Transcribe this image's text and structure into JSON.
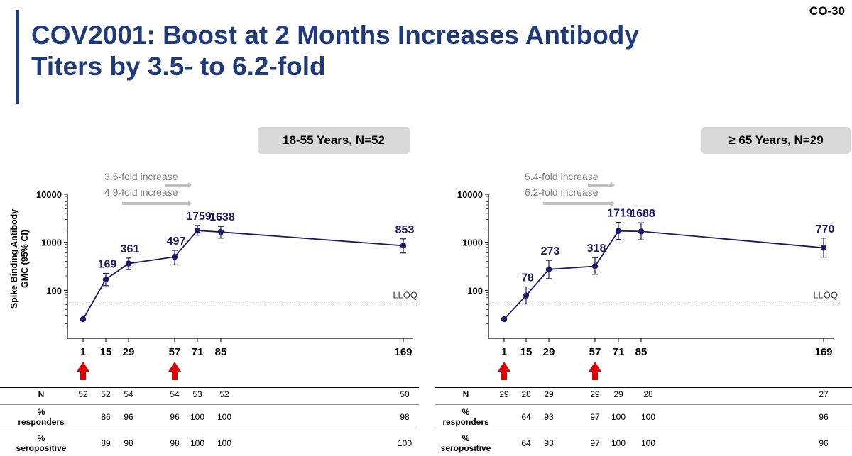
{
  "slide_id": "CO-30",
  "title_line1": "COV2001: Boost at 2 Months Increases Antibody",
  "title_line2": "Titers by 3.5- to 6.2-fold",
  "colors": {
    "title": "#1f3a7a",
    "series": "#1a1a66",
    "arrow": "#e00000",
    "fold_arrow": "#bfbfbf"
  },
  "chart_data": [
    {
      "type": "line",
      "panel_label": "18-55 Years, N=52",
      "ylabel": "Spike Binding Antibody GMC (95% CI)",
      "yscale": "log",
      "ylim": [
        10,
        10000
      ],
      "yticks": [
        "100",
        "1000",
        "10000"
      ],
      "xticks": [
        "1",
        "15",
        "29",
        "57",
        "71",
        "85",
        "169"
      ],
      "x": [
        1,
        15,
        29,
        57,
        71,
        85,
        169
      ],
      "y": [
        25,
        169,
        361,
        497,
        1759,
        1638,
        853
      ],
      "ci_low": [
        null,
        125,
        270,
        340,
        1400,
        1220,
        600
      ],
      "ci_high": [
        null,
        225,
        470,
        680,
        2250,
        2150,
        1180
      ],
      "data_labels": [
        "",
        "169",
        "361",
        "497",
        "1759",
        "1638",
        "853"
      ],
      "lloq": 52,
      "lloq_label": "LLOQ",
      "fold_annotations": [
        "3.5-fold increase",
        "4.9-fold increase"
      ],
      "dose_days": [
        1,
        57
      ]
    },
    {
      "type": "line",
      "panel_label": "≥ 65 Years, N=29",
      "ylabel": "",
      "yscale": "log",
      "ylim": [
        10,
        10000
      ],
      "yticks": [
        "100",
        "1000",
        "10000"
      ],
      "xticks": [
        "1",
        "15",
        "29",
        "57",
        "71",
        "85",
        "169"
      ],
      "x": [
        1,
        15,
        29,
        57,
        71,
        85,
        169
      ],
      "y": [
        25,
        78,
        273,
        318,
        1719,
        1688,
        770
      ],
      "ci_low": [
        null,
        52,
        175,
        215,
        1150,
        1130,
        490
      ],
      "ci_high": [
        null,
        118,
        420,
        480,
        2600,
        2550,
        1220
      ],
      "data_labels": [
        "",
        "78",
        "273",
        "318",
        "1719",
        "1688",
        "770"
      ],
      "lloq": 52,
      "lloq_label": "LLOQ",
      "fold_annotations": [
        "5.4-fold increase",
        "6.2-fold increase"
      ],
      "dose_days": [
        1,
        57
      ]
    }
  ],
  "tables": [
    {
      "rows": [
        {
          "label": "N",
          "values": [
            "52",
            "52",
            "54",
            "54",
            "53",
            "52",
            "50"
          ]
        },
        {
          "label": "% responders",
          "values": [
            "",
            "86",
            "96",
            "96",
            "100",
            "100",
            "98"
          ]
        },
        {
          "label": "% seropositive",
          "values": [
            "",
            "89",
            "98",
            "98",
            "100",
            "100",
            "100"
          ]
        }
      ]
    },
    {
      "rows": [
        {
          "label": "N",
          "values": [
            "29",
            "28",
            "29",
            "29",
            "29",
            "28",
            "27"
          ]
        },
        {
          "label": "% responders",
          "values": [
            "",
            "64",
            "93",
            "97",
            "100",
            "100",
            "96"
          ]
        },
        {
          "label": "% seropositive",
          "values": [
            "",
            "64",
            "93",
            "97",
            "100",
            "100",
            "96"
          ]
        }
      ]
    }
  ]
}
